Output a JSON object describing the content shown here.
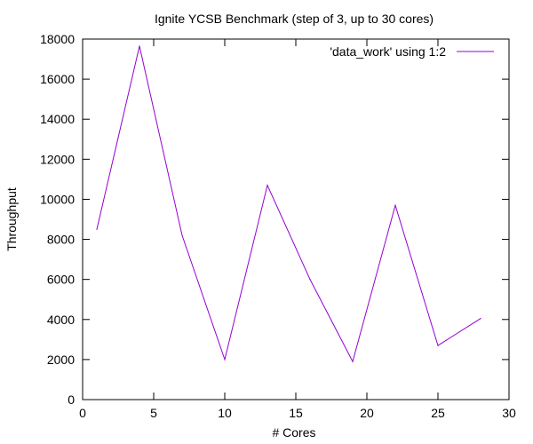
{
  "chart_data": {
    "type": "line",
    "title": "Ignite YCSB Benchmark (step of 3, up to 30 cores)",
    "xlabel": "# Cores",
    "ylabel": "Throughput",
    "xlim": [
      0,
      30
    ],
    "ylim": [
      0,
      18000
    ],
    "xticks": [
      0,
      5,
      10,
      15,
      20,
      25,
      30
    ],
    "yticks": [
      0,
      2000,
      4000,
      6000,
      8000,
      10000,
      12000,
      14000,
      16000,
      18000
    ],
    "grid": false,
    "legend_position": "top-right",
    "series": [
      {
        "name": "'data_work' using 1:2",
        "color": "#9400d3",
        "x": [
          1,
          4,
          7,
          10,
          13,
          16,
          19,
          22,
          25,
          28
        ],
        "y": [
          8500,
          17650,
          8200,
          2000,
          10700,
          6000,
          1900,
          9700,
          2700,
          4050
        ]
      }
    ]
  }
}
